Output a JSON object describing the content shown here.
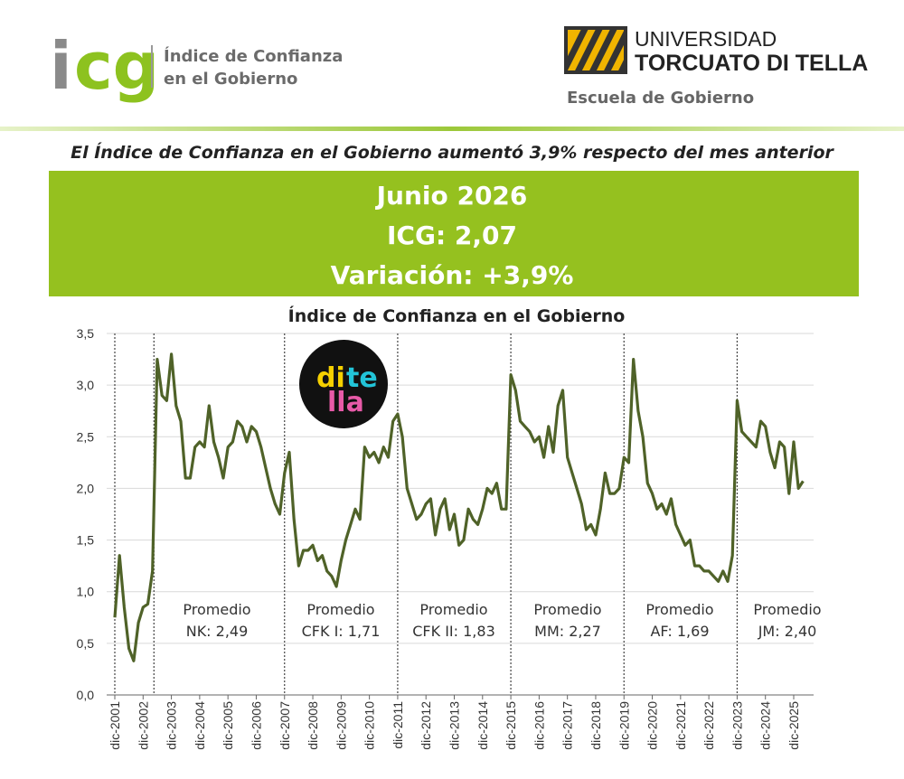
{
  "header": {
    "logo": [
      "i",
      "cg"
    ],
    "logo_text": [
      "Índice de Confianza",
      "en el Gobierno"
    ],
    "university": [
      "UNIVERSIDAD",
      "TORCUATO DI TELLA"
    ],
    "school": "Escuela de Gobierno"
  },
  "headline": "El Índice de Confianza en el Gobierno aumentó 3,9% respecto del mes anterior",
  "banner": [
    "Junio 2026",
    "ICG: 2,07",
    "Variación: +3,9%"
  ],
  "badge": [
    "di",
    "te",
    "lla"
  ],
  "chart_data": {
    "type": "line",
    "title": "Índice de Confianza en el Gobierno",
    "categories": [
      "dic-2001",
      null,
      null,
      null,
      null,
      null,
      "dic-2002",
      null,
      null,
      null,
      null,
      null,
      "dic-2003",
      null,
      null,
      null,
      null,
      null,
      "dic-2004",
      null,
      null,
      null,
      null,
      null,
      "dic-2005",
      null,
      null,
      null,
      null,
      null,
      "dic-2006",
      null,
      null,
      null,
      null,
      null,
      "dic-2007",
      null,
      null,
      null,
      null,
      null,
      "dic-2008",
      null,
      null,
      null,
      null,
      null,
      "dic-2009",
      null,
      null,
      null,
      null,
      null,
      "dic-2010",
      null,
      null,
      null,
      null,
      null,
      "dic-2011",
      null,
      null,
      null,
      null,
      null,
      "dic-2012",
      null,
      null,
      null,
      null,
      null,
      "dic-2013",
      null,
      null,
      null,
      null,
      null,
      "dic-2014",
      null,
      null,
      null,
      null,
      null,
      "dic-2015",
      null,
      null,
      null,
      null,
      null,
      "dic-2016",
      null,
      null,
      null,
      null,
      null,
      "dic-2017",
      null,
      null,
      null,
      null,
      null,
      "dic-2018",
      null,
      null,
      null,
      null,
      null,
      "dic-2019",
      null,
      null,
      null,
      null,
      null,
      "dic-2020",
      null,
      null,
      null,
      null,
      null,
      "dic-2021",
      null,
      null,
      null,
      null,
      null,
      "dic-2022",
      null,
      null,
      null,
      null,
      null,
      "dic-2023",
      null,
      null,
      null,
      null,
      null,
      "dic-2024",
      null,
      null,
      null,
      null,
      null,
      "dic-2025",
      null,
      null
    ],
    "values": [
      0.75,
      1.35,
      0.85,
      0.45,
      0.33,
      0.7,
      0.85,
      0.88,
      1.2,
      3.25,
      2.9,
      2.85,
      3.3,
      2.8,
      2.65,
      2.1,
      2.1,
      2.4,
      2.45,
      2.4,
      2.8,
      2.45,
      2.3,
      2.1,
      2.4,
      2.45,
      2.65,
      2.6,
      2.45,
      2.6,
      2.55,
      2.4,
      2.2,
      2.0,
      1.85,
      1.75,
      2.15,
      2.35,
      1.7,
      1.25,
      1.4,
      1.4,
      1.45,
      1.3,
      1.35,
      1.2,
      1.15,
      1.05,
      1.3,
      1.5,
      1.65,
      1.8,
      1.7,
      2.4,
      2.3,
      2.35,
      2.25,
      2.4,
      2.3,
      2.65,
      2.72,
      2.5,
      2.0,
      1.85,
      1.7,
      1.75,
      1.85,
      1.9,
      1.55,
      1.8,
      1.9,
      1.6,
      1.75,
      1.45,
      1.5,
      1.8,
      1.7,
      1.65,
      1.8,
      2.0,
      1.95,
      2.05,
      1.8,
      1.8,
      3.1,
      2.95,
      2.65,
      2.6,
      2.55,
      2.45,
      2.5,
      2.3,
      2.6,
      2.35,
      2.8,
      2.95,
      2.3,
      2.15,
      2.0,
      1.85,
      1.6,
      1.65,
      1.55,
      1.8,
      2.15,
      1.95,
      1.95,
      2.0,
      2.3,
      2.25,
      3.25,
      2.75,
      2.5,
      2.05,
      1.95,
      1.8,
      1.85,
      1.75,
      1.9,
      1.65,
      1.55,
      1.45,
      1.5,
      1.25,
      1.25,
      1.2,
      1.2,
      1.15,
      1.1,
      1.2,
      1.1,
      1.35,
      2.85,
      2.55,
      2.5,
      2.45,
      2.4,
      2.65,
      2.6,
      2.35,
      2.2,
      2.45,
      2.4,
      1.95,
      2.45,
      2.0,
      2.07
    ],
    "color": "#4f6228",
    "ylim": [
      0,
      3.5
    ],
    "yticks": [
      {
        "value": 0,
        "label": "0,0"
      },
      {
        "value": 0.5,
        "label": "0,5"
      },
      {
        "value": 1,
        "label": "1,0"
      },
      {
        "value": 1.5,
        "label": "1,5"
      },
      {
        "value": 2,
        "label": "2,0"
      },
      {
        "value": 2.5,
        "label": "2,5"
      },
      {
        "value": 3,
        "label": "3,0"
      },
      {
        "value": 3.5,
        "label": "3,5"
      }
    ],
    "grid": true,
    "annotations": [
      [
        "Promedio",
        "NK: 2,49"
      ],
      [
        "Promedio",
        "CFK I: 1,71"
      ],
      [
        "Promedio",
        "CFK II: 1,83"
      ],
      [
        "Promedio",
        "MM: 2,27"
      ],
      [
        "Promedio",
        "AF: 1,69"
      ],
      [
        "Promedio",
        "JM: 2,40"
      ]
    ]
  }
}
